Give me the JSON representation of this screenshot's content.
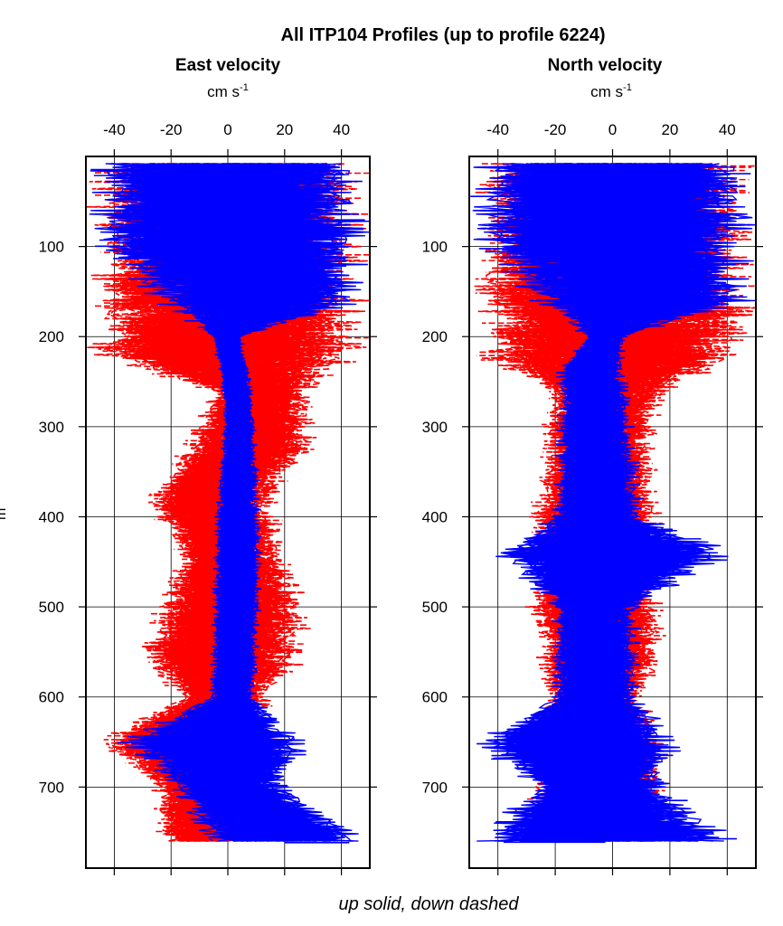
{
  "figure": {
    "title": "All ITP104 Profiles (up to profile 6224)",
    "footer": "up solid, down dashed",
    "ylabel_fragment": "m"
  },
  "chart_data": [
    {
      "type": "line",
      "title": "East velocity",
      "unit": "cm s",
      "unit_exp": "-1",
      "xlim": [
        -50,
        50
      ],
      "xticks": [
        -40,
        -20,
        0,
        20,
        40
      ],
      "ylim": [
        790,
        0
      ],
      "yticks": [
        100,
        200,
        300,
        400,
        500,
        600,
        700
      ],
      "grid": true,
      "series": [
        {
          "style": "dashed",
          "color": "#ff0000",
          "depth": [
            10,
            100,
            160,
            180,
            220,
            260,
            320,
            380,
            450,
            500,
            560,
            600,
            650,
            700,
            760
          ],
          "min": [
            -50,
            -50,
            -50,
            -50,
            -50,
            -8,
            -16,
            -30,
            -18,
            -28,
            -32,
            -18,
            -48,
            -28,
            -25
          ],
          "max": [
            50,
            50,
            50,
            50,
            50,
            30,
            32,
            18,
            22,
            30,
            28,
            15,
            20,
            15,
            18
          ]
        },
        {
          "style": "solid",
          "color": "#0000ff",
          "depth": [
            10,
            100,
            160,
            200,
            240,
            300,
            400,
            500,
            600,
            650,
            700,
            760
          ],
          "min": [
            -50,
            -50,
            -28,
            -6,
            -3,
            -2,
            -5,
            -6,
            -7,
            -40,
            -20,
            -10
          ],
          "max": [
            50,
            50,
            50,
            5,
            8,
            10,
            12,
            12,
            10,
            30,
            22,
            50
          ]
        }
      ]
    },
    {
      "type": "line",
      "title": "North velocity",
      "unit": "cm s",
      "unit_exp": "-1",
      "xlim": [
        -50,
        50
      ],
      "xticks": [
        -40,
        -20,
        0,
        20,
        40
      ],
      "ylim": [
        790,
        0
      ],
      "yticks": [
        100,
        200,
        300,
        400,
        500,
        600,
        700
      ],
      "grid": true,
      "series": [
        {
          "style": "dashed",
          "color": "#ff0000",
          "depth": [
            10,
            100,
            160,
            180,
            220,
            260,
            320,
            400,
            460,
            500,
            540,
            600,
            650,
            700,
            760
          ],
          "min": [
            -50,
            -50,
            -50,
            -50,
            -50,
            -25,
            -25,
            -30,
            -25,
            -32,
            -28,
            -25,
            -30,
            -30,
            -30
          ],
          "max": [
            50,
            50,
            50,
            50,
            50,
            20,
            15,
            18,
            15,
            18,
            20,
            12,
            20,
            20,
            15
          ],
          "counts_shift": 0
        },
        {
          "style": "solid",
          "color": "#0000ff",
          "depth": [
            10,
            100,
            160,
            200,
            240,
            300,
            400,
            440,
            500,
            600,
            650,
            700,
            760
          ],
          "min": [
            -50,
            -50,
            -30,
            -10,
            -20,
            -20,
            -22,
            -45,
            -22,
            -22,
            -50,
            -30,
            -50
          ],
          "max": [
            50,
            50,
            50,
            5,
            5,
            8,
            12,
            45,
            10,
            10,
            25,
            20,
            45
          ]
        }
      ]
    }
  ]
}
